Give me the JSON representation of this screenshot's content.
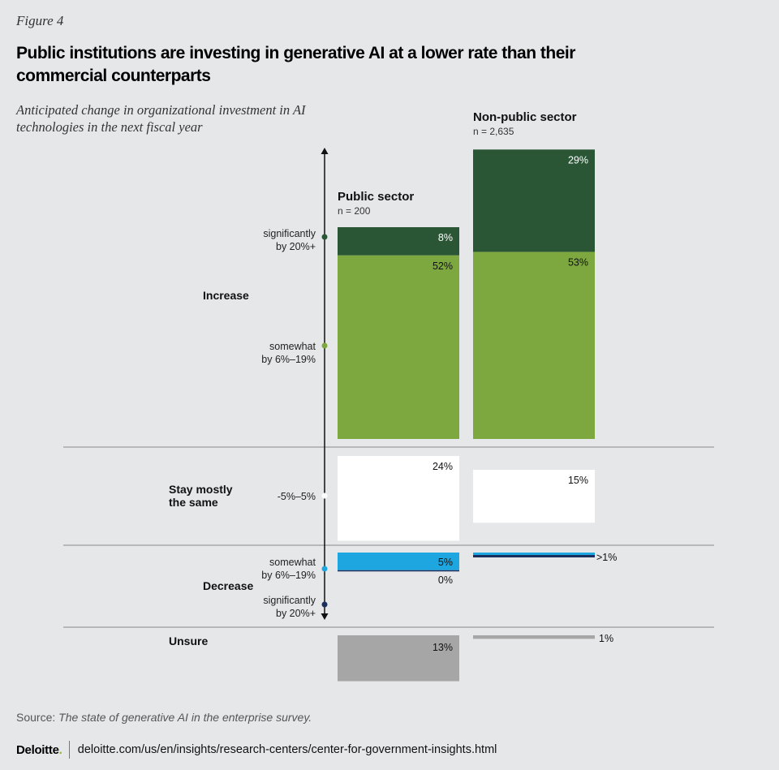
{
  "figure_label": "Figure 4",
  "chart_data": {
    "type": "bar",
    "title": "Public institutions are investing in generative AI at a lower rate than their commercial counterparts",
    "subtitle": "Anticipated change in organizational investment in AI technologies in the next fiscal year",
    "series": [
      {
        "name": "Public sector",
        "n_label": "n = 200",
        "values": {
          "inc_sig": 8,
          "inc_some": 52,
          "same": 24,
          "dec_some": 5,
          "dec_sig": 0,
          "unsure": 13
        },
        "labels": {
          "inc_sig": "8%",
          "inc_some": "52%",
          "same": "24%",
          "dec_some": "5%",
          "dec_sig": "0%",
          "unsure": "13%"
        }
      },
      {
        "name": "Non-public sector",
        "n_label": "n = 2,635",
        "values": {
          "inc_sig": 29,
          "inc_some": 53,
          "same": 15,
          "dec_some": 1,
          "dec_sig": 1,
          "unsure": 1
        },
        "labels": {
          "inc_sig": "29%",
          "inc_some": "53%",
          "same": "15%",
          "dec_some": ">1%",
          "dec_sig": "",
          "unsure": "1%"
        }
      }
    ],
    "groups": {
      "increase": "Increase",
      "same_line1": "Stay mostly",
      "same_line2": "the same",
      "decrease": "Decrease",
      "unsure": "Unsure"
    },
    "axis_labels": {
      "sig_inc_1": "significantly",
      "sig_inc_2": "by 20%+",
      "some_inc_1": "somewhat",
      "some_inc_2": "by 6%–19%",
      "same": "-5%–5%",
      "some_dec_1": "somewhat",
      "some_dec_2": "by 6%–19%",
      "sig_dec_1": "significantly",
      "sig_dec_2": "by 20%+"
    },
    "colors": {
      "inc_sig": "#2a5636",
      "inc_some": "#7da73f",
      "same": "#ffffff",
      "dec_some": "#1ea6e0",
      "dec_sig": "#1b2f5e",
      "unsure": "#a6a6a6"
    }
  },
  "source": {
    "prefix": "Source: ",
    "title": "The state of generative AI in the enterprise survey."
  },
  "footer": {
    "brand": "Deloitte",
    "brand_dot": ".",
    "url": "deloitte.com/us/en/insights/research-centers/center-for-government-insights.html"
  }
}
